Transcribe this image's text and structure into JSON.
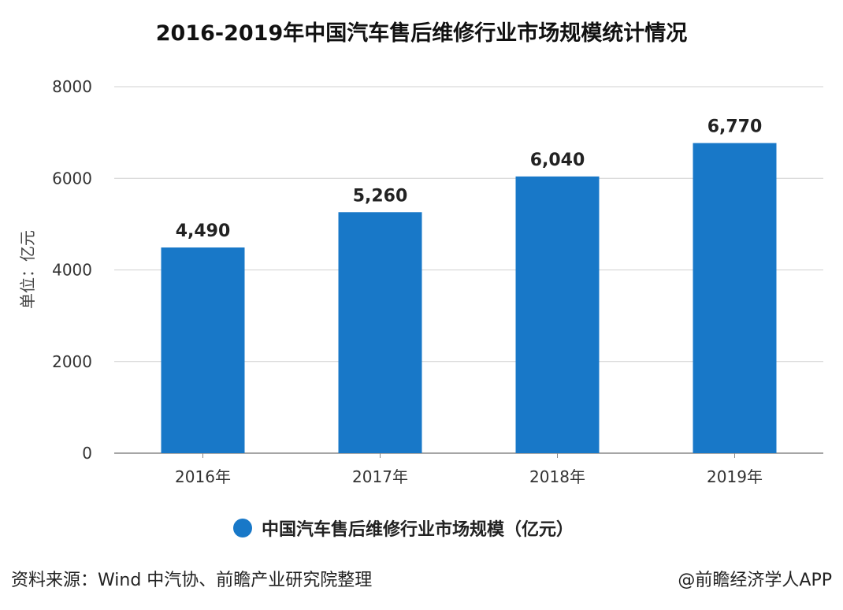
{
  "chart_data": {
    "type": "bar",
    "title": "2016-2019年中国汽车售后维修行业市场规模统计情况",
    "categories": [
      "2016年",
      "2017年",
      "2018年",
      "2019年"
    ],
    "series": [
      {
        "name": "中国汽车售后维修行业市场规模（亿元）",
        "values": [
          4490,
          5260,
          6040,
          6770
        ],
        "labels": [
          "4,490",
          "5,260",
          "6,040",
          "6,770"
        ]
      }
    ],
    "ylabel": "单位：亿元",
    "xlabel": "",
    "ylim": [
      0,
      8000
    ],
    "yticks": [
      0,
      2000,
      4000,
      6000,
      8000
    ],
    "grid": true,
    "legend": "bottom",
    "color": "#1878c8"
  },
  "footer": {
    "source": "资料来源：Wind 中汽协、前瞻产业研究院整理",
    "credit": "@前瞻经济学人APP"
  }
}
